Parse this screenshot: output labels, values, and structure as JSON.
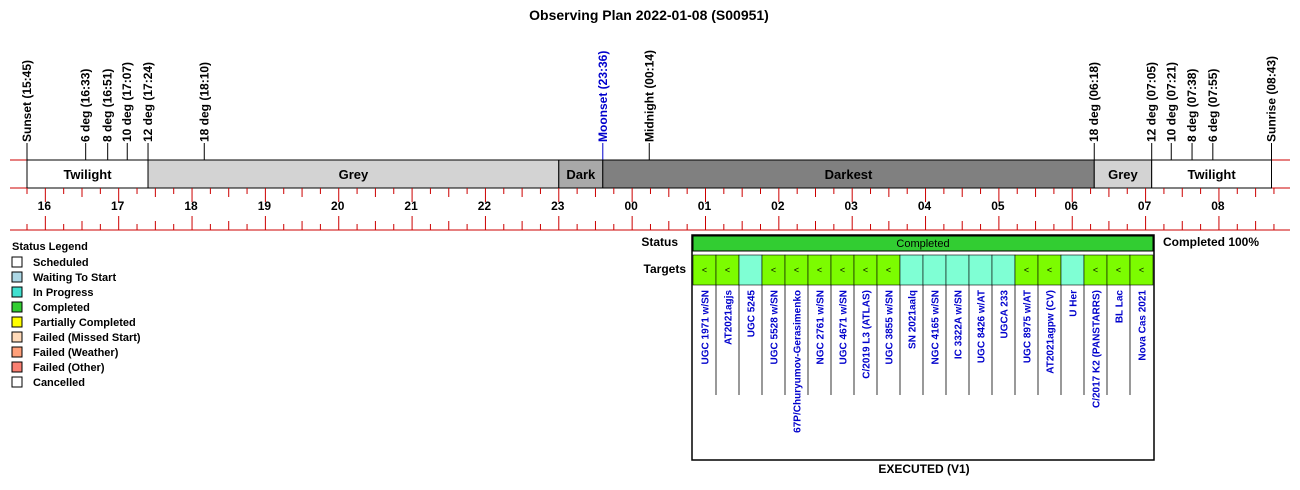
{
  "title": "Observing Plan 2022-01-08 (S00951)",
  "events": [
    {
      "label": "Sunset (15:45)",
      "time": "15:45",
      "color": "#000000"
    },
    {
      "label": "6 deg (16:33)",
      "time": "16:33",
      "color": "#000000"
    },
    {
      "label": "8 deg (16:51)",
      "time": "16:51",
      "color": "#000000"
    },
    {
      "label": "10 deg (17:07)",
      "time": "17:07",
      "color": "#000000"
    },
    {
      "label": "12 deg (17:24)",
      "time": "17:24",
      "color": "#000000"
    },
    {
      "label": "18 deg (18:10)",
      "time": "18:10",
      "color": "#000000"
    },
    {
      "label": "Moonset (23:36)",
      "time": "23:36",
      "color": "#0000cc"
    },
    {
      "label": "Midnight (00:14)",
      "time": "00:14",
      "color": "#000000"
    },
    {
      "label": "18 deg (06:18)",
      "time": "06:18",
      "color": "#000000"
    },
    {
      "label": "12 deg (07:05)",
      "time": "07:05",
      "color": "#000000"
    },
    {
      "label": "10 deg (07:21)",
      "time": "07:21",
      "color": "#000000"
    },
    {
      "label": "8 deg (07:38)",
      "time": "07:38",
      "color": "#000000"
    },
    {
      "label": "6 deg (07:55)",
      "time": "07:55",
      "color": "#000000"
    },
    {
      "label": "Sunrise (08:43)",
      "time": "08:43",
      "color": "#000000"
    }
  ],
  "phases": [
    {
      "label": "Twilight",
      "start": "15:45",
      "end": "17:24",
      "color": "#ffffff"
    },
    {
      "label": "Grey",
      "start": "17:24",
      "end": "23:00",
      "color": "#d3d3d3"
    },
    {
      "label": "Dark",
      "start": "23:00",
      "end": "23:36",
      "color": "#a9a9a9"
    },
    {
      "label": "Darkest",
      "start": "23:36",
      "end": "06:18",
      "color": "#808080"
    },
    {
      "label": "Grey",
      "start": "06:18",
      "end": "07:05",
      "color": "#d3d3d3"
    },
    {
      "label": "Twilight",
      "start": "07:05",
      "end": "08:43",
      "color": "#ffffff"
    }
  ],
  "hour_labels": [
    "16",
    "17",
    "18",
    "19",
    "20",
    "21",
    "22",
    "23",
    "00",
    "01",
    "02",
    "03",
    "04",
    "05",
    "06",
    "07",
    "08"
  ],
  "legend": {
    "title": "Status Legend",
    "items": [
      {
        "label": "Scheduled",
        "color": "#ffffff"
      },
      {
        "label": "Waiting To Start",
        "color": "#add8e6"
      },
      {
        "label": "In Progress",
        "color": "#40e0d0"
      },
      {
        "label": "Completed",
        "color": "#32cd32"
      },
      {
        "label": "Partially Completed",
        "color": "#ffff00"
      },
      {
        "label": "Failed (Missed Start)",
        "color": "#ffdab9"
      },
      {
        "label": "Failed (Weather)",
        "color": "#ffa07a"
      },
      {
        "label": "Failed (Other)",
        "color": "#fa8072"
      },
      {
        "label": "Cancelled",
        "color": "#ffffff"
      }
    ]
  },
  "status_row": {
    "label": "Status",
    "value": "Completed",
    "color": "#32cd32",
    "summary": "Completed 100%"
  },
  "targets_label": "Targets",
  "panel_caption": "EXECUTED (V1)",
  "completed_color": "#7cfc00",
  "pending_color": "#7fffd4",
  "targets": [
    {
      "name": "UGC 1971 w/SN",
      "state": "completed",
      "mark": "<"
    },
    {
      "name": "AT2021agjs",
      "state": "completed",
      "mark": "<"
    },
    {
      "name": "UGC 5245",
      "state": "pending",
      "mark": ""
    },
    {
      "name": "UGC 5528 w/SN",
      "state": "completed",
      "mark": "<"
    },
    {
      "name": "67P/Churyumov-Gerasimenko",
      "state": "completed",
      "mark": "<"
    },
    {
      "name": "NGC 2761 w/SN",
      "state": "completed",
      "mark": "<"
    },
    {
      "name": "UGC 4671 w/SN",
      "state": "completed",
      "mark": "<"
    },
    {
      "name": "C/2019 L3 (ATLAS)",
      "state": "completed",
      "mark": "<"
    },
    {
      "name": "UGC 3855 w/SN",
      "state": "completed",
      "mark": "<"
    },
    {
      "name": "SN 2021aalq",
      "state": "pending",
      "mark": ""
    },
    {
      "name": "NGC 4165 w/SN",
      "state": "pending",
      "mark": ""
    },
    {
      "name": "IC 3322A w/SN",
      "state": "pending",
      "mark": ""
    },
    {
      "name": "UGC 8426 w/AT",
      "state": "pending",
      "mark": ""
    },
    {
      "name": "UGCA 233",
      "state": "pending",
      "mark": ""
    },
    {
      "name": "UGC 8975 w/AT",
      "state": "completed",
      "mark": "<"
    },
    {
      "name": "AT2021agpw (CV)",
      "state": "completed",
      "mark": "<"
    },
    {
      "name": "U Her",
      "state": "pending",
      "mark": ""
    },
    {
      "name": "C/2017 K2 (PANSTARRS)",
      "state": "completed",
      "mark": "<"
    },
    {
      "name": "BL Lac",
      "state": "completed",
      "mark": "<"
    },
    {
      "name": "Nova Cas 2021",
      "state": "completed",
      "mark": "<"
    }
  ],
  "chart_data": {
    "type": "timeline",
    "title": "Observing Plan 2022-01-08 (S00951)",
    "x_range": [
      "15:45",
      "08:43"
    ],
    "ticks": [
      "16",
      "17",
      "18",
      "19",
      "20",
      "21",
      "22",
      "23",
      "00",
      "01",
      "02",
      "03",
      "04",
      "05",
      "06",
      "07",
      "08"
    ],
    "segments": [
      {
        "label": "Twilight",
        "start": "15:45",
        "end": "17:24"
      },
      {
        "label": "Grey",
        "start": "17:24",
        "end": "23:00"
      },
      {
        "label": "Dark",
        "start": "23:00",
        "end": "23:36"
      },
      {
        "label": "Darkest",
        "start": "23:36",
        "end": "06:18"
      },
      {
        "label": "Grey",
        "start": "06:18",
        "end": "07:05"
      },
      {
        "label": "Twilight",
        "start": "07:05",
        "end": "08:43"
      }
    ],
    "status": "Completed",
    "completion": 100
  }
}
